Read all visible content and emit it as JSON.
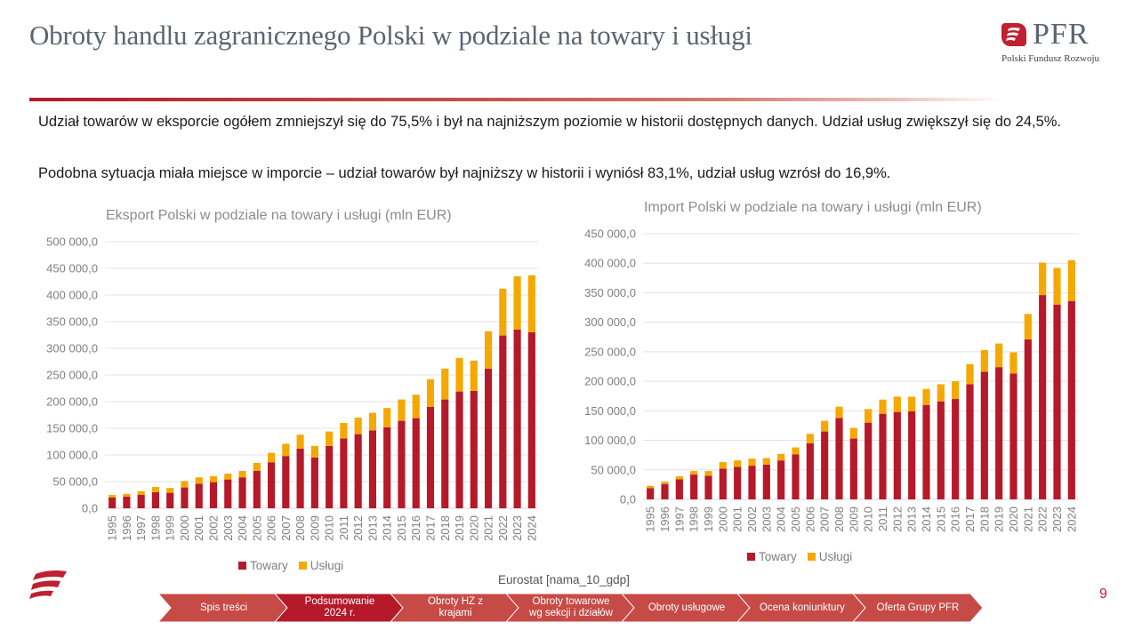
{
  "header": {
    "title": "Obroty handlu zagranicznego Polski w podziale na towary i usługi",
    "logo_text": "PFR",
    "logo_subtitle": "Polski Fundusz Rozwoju",
    "logo_icon": "pfr-flag-icon"
  },
  "paragraphs": [
    "Udział towarów w eksporcie ogółem zmniejszył się do 75,5% i był na najniższym poziomie w historii dostępnych danych. Udział usług zwiększył się do 24,5%.",
    "Podobna sytuacja miała miejsce w imporcie – udział towarów był najniższy w historii i wyniósł 83,1%, udział usług wzrósł do 16,9%."
  ],
  "colors": {
    "towary": "#b5192a",
    "uslugi": "#f5a800",
    "accent": "#c0202f",
    "nav": "#c64b47",
    "nav_active": "#b5192a"
  },
  "chart_data": [
    {
      "type": "bar",
      "stacked": true,
      "title": "Eksport Polski w podziale na towary i usługi (mln EUR)",
      "xlabel": "",
      "ylabel": "",
      "ylim": [
        0,
        500000
      ],
      "yticks": [
        "0,0",
        "50 000,0",
        "100 000,0",
        "150 000,0",
        "200 000,0",
        "250 000,0",
        "300 000,0",
        "350 000,0",
        "400 000,0",
        "450 000,0",
        "500 000,0"
      ],
      "grid": true,
      "legend_position": "bottom",
      "categories": [
        "1995",
        "1996",
        "1997",
        "1998",
        "1999",
        "2000",
        "2001",
        "2002",
        "2003",
        "2004",
        "2005",
        "2006",
        "2007",
        "2008",
        "2009",
        "2010",
        "2011",
        "2012",
        "2013",
        "2014",
        "2015",
        "2016",
        "2017",
        "2018",
        "2019",
        "2020",
        "2021",
        "2022",
        "2023",
        "2024"
      ],
      "series": [
        {
          "name": "Towary",
          "values": [
            20000,
            22000,
            25000,
            30000,
            29000,
            39000,
            46000,
            49000,
            54000,
            58000,
            70000,
            86000,
            98000,
            112000,
            95000,
            117000,
            131000,
            139000,
            146000,
            152000,
            164000,
            169000,
            190000,
            204000,
            219000,
            220000,
            262000,
            324000,
            335000,
            330000
          ]
        },
        {
          "name": "Usługi",
          "values": [
            5000,
            5000,
            7000,
            10000,
            9000,
            12000,
            12000,
            11000,
            11000,
            12000,
            15000,
            18000,
            23000,
            26000,
            22000,
            27000,
            29000,
            31000,
            33000,
            36000,
            40000,
            44000,
            52000,
            58000,
            63000,
            57000,
            70000,
            88000,
            100000,
            107000
          ]
        }
      ]
    },
    {
      "type": "bar",
      "stacked": true,
      "title": "Import Polski w podziale na towary i usługi (mln EUR)",
      "xlabel": "",
      "ylabel": "",
      "ylim": [
        0,
        450000
      ],
      "yticks": [
        "0,0",
        "50 000,0",
        "100 000,0",
        "150 000,0",
        "200 000,0",
        "250 000,0",
        "300 000,0",
        "350 000,0",
        "400 000,0",
        "450 000,0"
      ],
      "grid": true,
      "legend_position": "bottom",
      "categories": [
        "1995",
        "1996",
        "1997",
        "1998",
        "1999",
        "2000",
        "2001",
        "2002",
        "2003",
        "2004",
        "2005",
        "2006",
        "2007",
        "2008",
        "2009",
        "2010",
        "2011",
        "2012",
        "2013",
        "2014",
        "2015",
        "2016",
        "2017",
        "2018",
        "2019",
        "2020",
        "2021",
        "2022",
        "2023",
        "2024"
      ],
      "series": [
        {
          "name": "Towary",
          "values": [
            19000,
            26000,
            34000,
            42000,
            40000,
            52000,
            55000,
            57000,
            59000,
            66000,
            76000,
            95000,
            115000,
            138000,
            103000,
            130000,
            145000,
            148000,
            149000,
            160000,
            166000,
            170000,
            195000,
            216000,
            224000,
            213000,
            271000,
            346000,
            330000,
            336000
          ]
        },
        {
          "name": "Usługi",
          "values": [
            4000,
            4000,
            5000,
            6000,
            8000,
            11000,
            11000,
            12000,
            11000,
            11000,
            12000,
            16000,
            18000,
            19000,
            18000,
            23000,
            24000,
            26000,
            25000,
            27000,
            29000,
            30000,
            34000,
            37000,
            40000,
            36000,
            43000,
            55000,
            62000,
            69000
          ]
        }
      ]
    }
  ],
  "footer": {
    "source": "Eurostat [nama_10_gdp]",
    "page_number": "9",
    "nav": [
      {
        "label": "Spis treści",
        "active": false
      },
      {
        "label": "Podsumowanie 2024 r.",
        "active": true
      },
      {
        "label": "Obroty HZ z krajami",
        "active": false
      },
      {
        "label": "Obroty towarowe wg sekcji i działów",
        "active": false
      },
      {
        "label": "Obroty usługowe",
        "active": false
      },
      {
        "label": "Ocena koniunktury",
        "active": false
      },
      {
        "label": "Oferta Grupy PFR",
        "active": false
      }
    ]
  }
}
